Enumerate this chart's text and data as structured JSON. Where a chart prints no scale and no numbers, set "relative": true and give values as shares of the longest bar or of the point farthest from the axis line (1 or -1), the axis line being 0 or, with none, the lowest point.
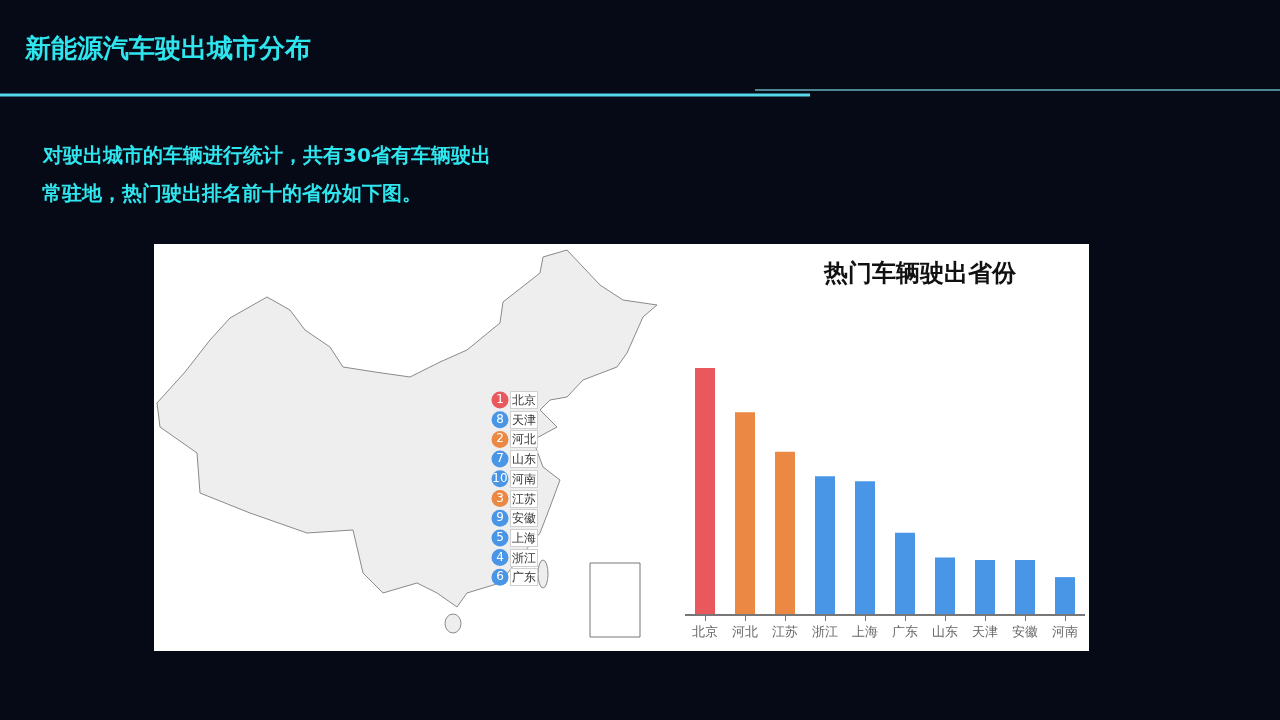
{
  "chart_data": [
    {
      "type": "other",
      "title": "新能源汽车驶出城市分布",
      "subtitle": "对驶出城市的车辆进行统计，共有30省有车辆驶出常驻地，热门驶出排名前十的省份如下图。",
      "categories": [
        "北京",
        "天津",
        "河北",
        "山东",
        "河南",
        "江苏",
        "安徽",
        "上海",
        "浙江",
        "广东"
      ],
      "values": [
        1,
        8,
        2,
        7,
        10,
        3,
        9,
        5,
        4,
        6
      ],
      "data_labels": true,
      "colors": [
        "#e8585d",
        "#4a96e6",
        "#ea8844",
        "#4a96e6",
        "#4a96e6",
        "#ea8844",
        "#4a96e6",
        "#4a96e6",
        "#4a96e6",
        "#4a96e6"
      ]
    },
    {
      "type": "bar",
      "title": "热门车辆驶出省份",
      "relative": true,
      "categories": [
        "北京",
        "河北",
        "江苏",
        "浙江",
        "上海",
        "广东",
        "山东",
        "天津",
        "安徽",
        "河南"
      ],
      "values": [
        1,
        0.82,
        0.66,
        0.56,
        0.54,
        0.33,
        0.23,
        0.22,
        0.22,
        0.15
      ],
      "colors": [
        "#e8585d",
        "#ea8844",
        "#ea8844",
        "#4a96e6",
        "#4a96e6",
        "#4a96e6",
        "#4a96e6",
        "#4a96e6",
        "#4a96e6",
        "#4a96e6"
      ]
    }
  ]
}
